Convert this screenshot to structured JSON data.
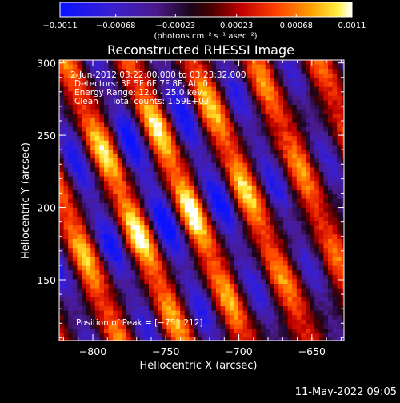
{
  "chart_data": {
    "type": "heatmap",
    "title": "Reconstructed RHESSI Image",
    "xlabel": "Heliocentric X (arcsec)",
    "ylabel": "Heliocentric Y (arcsec)",
    "xlim": [
      -823,
      -628
    ],
    "ylim": [
      108,
      302
    ],
    "xticks": [
      -800,
      -750,
      -700,
      -650
    ],
    "xtick_labels": [
      "−800",
      "−750",
      "−700",
      "−650"
    ],
    "yticks": [
      150,
      200,
      250,
      300
    ],
    "ytick_labels": [
      "150",
      "200",
      "250",
      "300"
    ],
    "colorbar": {
      "range": [
        -0.0011,
        0.0011
      ],
      "colormap": "blue-purple-black-red-orange-yellow-white",
      "ticks": [
        -0.0011,
        -0.00068,
        -0.00023,
        0.00023,
        0.00068,
        0.0011
      ],
      "tick_labels": [
        "−0.0011",
        "−0.00068",
        "−0.00023",
        "0.00023",
        "0.00068",
        "0.0011"
      ],
      "label": "(photons cm⁻² s⁻¹ asec⁻²)"
    },
    "annotations": [
      "2-Jun-2012 03:22:00.000 to 03:23:32.000",
      "Detectors: 3F 5F 6F 7F 8F, Att 0",
      "Energy Range: 12.0 - 25.0 keV",
      "Clean     Total counts: 1.59E+03"
    ],
    "peak_label": "Position of Peak = [−751,212]",
    "peak": [
      -751,
      212
    ],
    "grid": false,
    "legend": "none"
  },
  "footer": {
    "date": "11-May-2022 09:05"
  }
}
